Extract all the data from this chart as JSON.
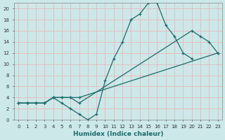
{
  "xlabel": "Humidex (Indice chaleur)",
  "bg_color": "#cde8e8",
  "grid_color": "#e8b8b8",
  "line_color": "#1a6b6b",
  "xlim": [
    -0.5,
    23.5
  ],
  "ylim": [
    0,
    21
  ],
  "xticks": [
    0,
    1,
    2,
    3,
    4,
    5,
    6,
    7,
    8,
    9,
    10,
    11,
    12,
    13,
    14,
    15,
    16,
    17,
    18,
    19,
    20,
    21,
    22,
    23
  ],
  "yticks": [
    0,
    2,
    4,
    6,
    8,
    10,
    12,
    14,
    16,
    18,
    20
  ],
  "line1_x": [
    0,
    1,
    2,
    3,
    4,
    5,
    6,
    7,
    8,
    9,
    10,
    11,
    12,
    13,
    14,
    15,
    16,
    17,
    18,
    19,
    20
  ],
  "line1_y": [
    3,
    3,
    3,
    3,
    4,
    3,
    2,
    1,
    0,
    1,
    7,
    11,
    14,
    18,
    19,
    21,
    21,
    17,
    15,
    12,
    11
  ],
  "line2_x": [
    0,
    1,
    2,
    3,
    4,
    5,
    6,
    7,
    20,
    21,
    22,
    23
  ],
  "line2_y": [
    3,
    3,
    3,
    3,
    4,
    4,
    4,
    3,
    16,
    15,
    14,
    12
  ],
  "line3_x": [
    0,
    1,
    2,
    3,
    4,
    5,
    6,
    7,
    23
  ],
  "line3_y": [
    3,
    3,
    3,
    3,
    4,
    4,
    4,
    4,
    12
  ]
}
